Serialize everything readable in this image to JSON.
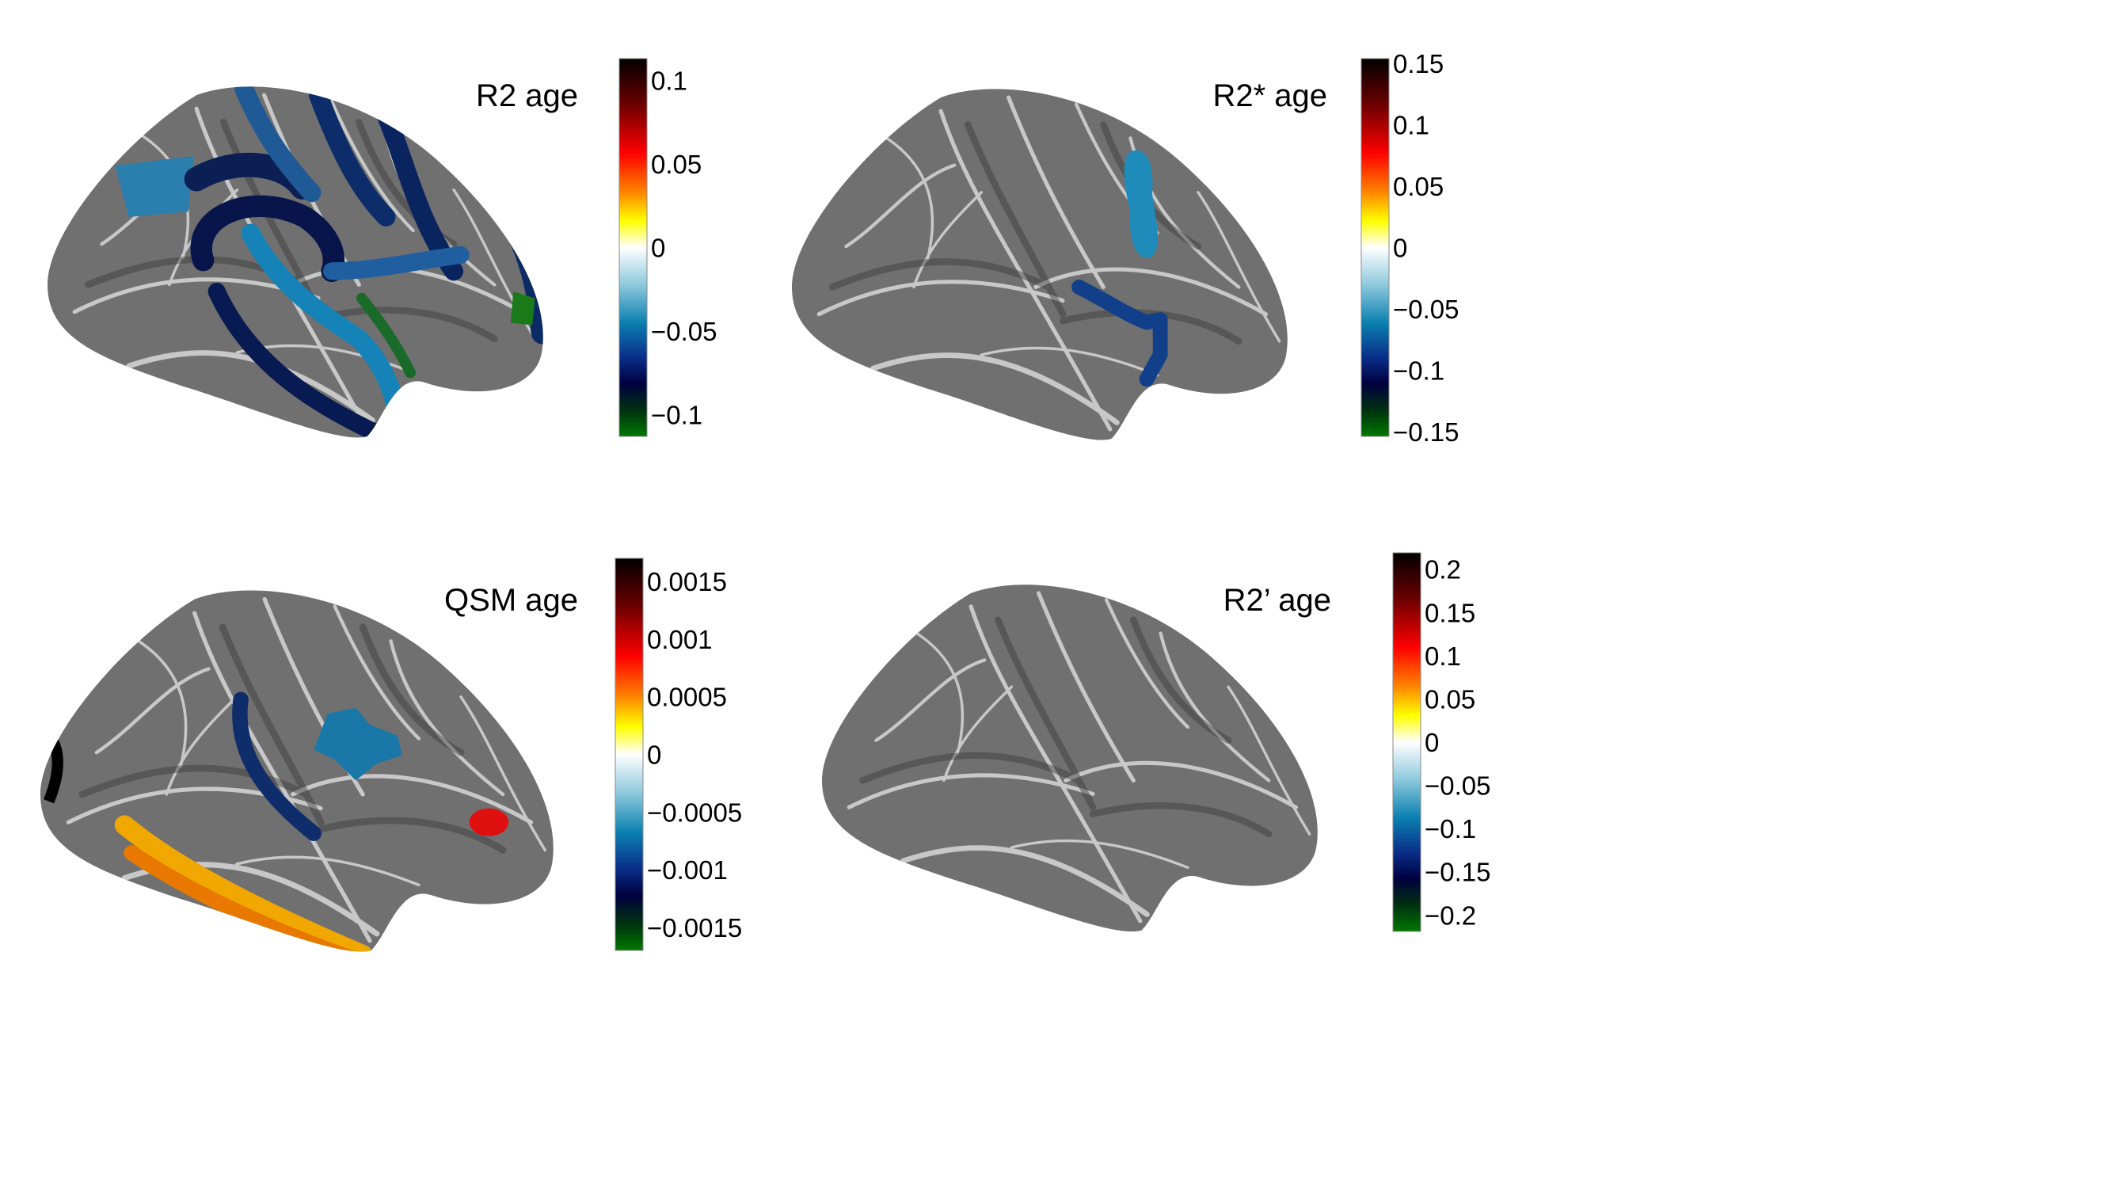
{
  "chart_data": {
    "type": "heatmap",
    "description_kind": "cortical surface maps with colorbars",
    "panels": [
      {
        "title": "R2 age",
        "colorbar": {
          "range": [
            -0.113,
            0.113
          ],
          "ticks": [
            0.1,
            0.05,
            0,
            -0.05,
            -0.1
          ],
          "tick_labels": [
            "0.1",
            "0.05",
            "0",
            "−0.05",
            "−0.1"
          ]
        }
      },
      {
        "title": "R2* age",
        "colorbar": {
          "range": [
            -0.154,
            0.154
          ],
          "ticks": [
            0.15,
            0.1,
            0.05,
            0,
            -0.05,
            -0.1,
            -0.15
          ],
          "tick_labels": [
            "0.15",
            "0.1",
            "0.05",
            "0",
            "−0.05",
            "−0.1",
            "−0.15"
          ]
        }
      },
      {
        "title": "QSM age",
        "colorbar": {
          "range": [
            -0.0017,
            0.0017
          ],
          "ticks": [
            0.0015,
            0.001,
            0.0005,
            0,
            -0.0005,
            -0.001,
            -0.0015
          ],
          "tick_labels": [
            "0.0015",
            "0.001",
            "0.0005",
            "0",
            "−0.0005",
            "−0.001",
            "−0.0015"
          ]
        }
      },
      {
        "title": "R2’ age",
        "colorbar": {
          "range": [
            -0.219,
            0.219
          ],
          "ticks": [
            0.2,
            0.15,
            0.1,
            0.05,
            0,
            -0.05,
            -0.1,
            -0.15,
            -0.2
          ],
          "tick_labels": [
            "0.2",
            "0.15",
            "0.1",
            "0.05",
            "0",
            "−0.05",
            "−0.1",
            "−0.15",
            "−0.2"
          ]
        }
      }
    ],
    "colormap": [
      "#000000",
      "#7a0000",
      "#ff0000",
      "#ff8000",
      "#ffff00",
      "#ffffff",
      "#8cc8dc",
      "#0a80b0",
      "#0a2f8a",
      "#000040",
      "#003010",
      "#007800"
    ]
  }
}
